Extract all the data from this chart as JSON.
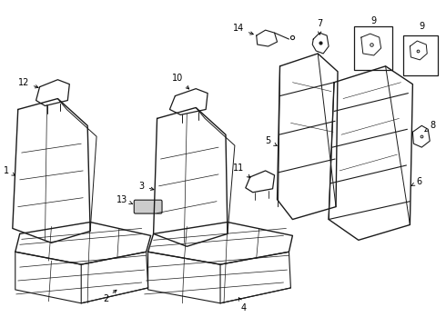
{
  "bg_color": "#ffffff",
  "line_color": "#1a1a1a",
  "fig_width": 4.9,
  "fig_height": 3.6,
  "dpi": 100,
  "font_size": 7.0
}
